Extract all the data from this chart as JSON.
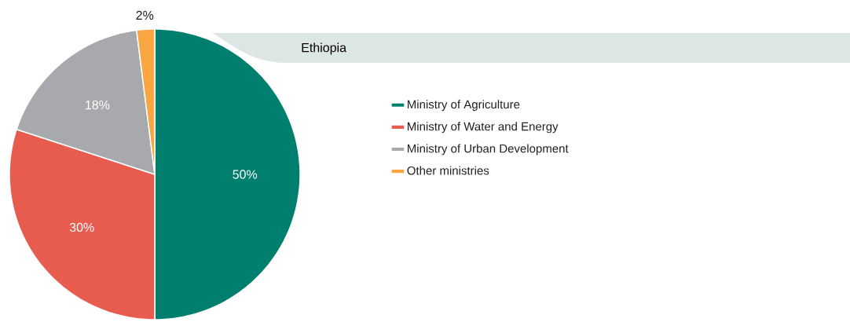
{
  "chart_data": {
    "type": "pie",
    "title": "Ethiopia",
    "categories": [
      "Ministry of Agriculture",
      "Ministry of Water and Energy",
      "Ministry of Urban Development",
      "Other ministries"
    ],
    "values": [
      50,
      30,
      18,
      2
    ],
    "value_labels": [
      "50%",
      "30%",
      "18%",
      "2%"
    ],
    "colors": [
      "#007f6e",
      "#e85c4f",
      "#a7a9ac",
      "#f9a541"
    ],
    "legend": "right"
  }
}
